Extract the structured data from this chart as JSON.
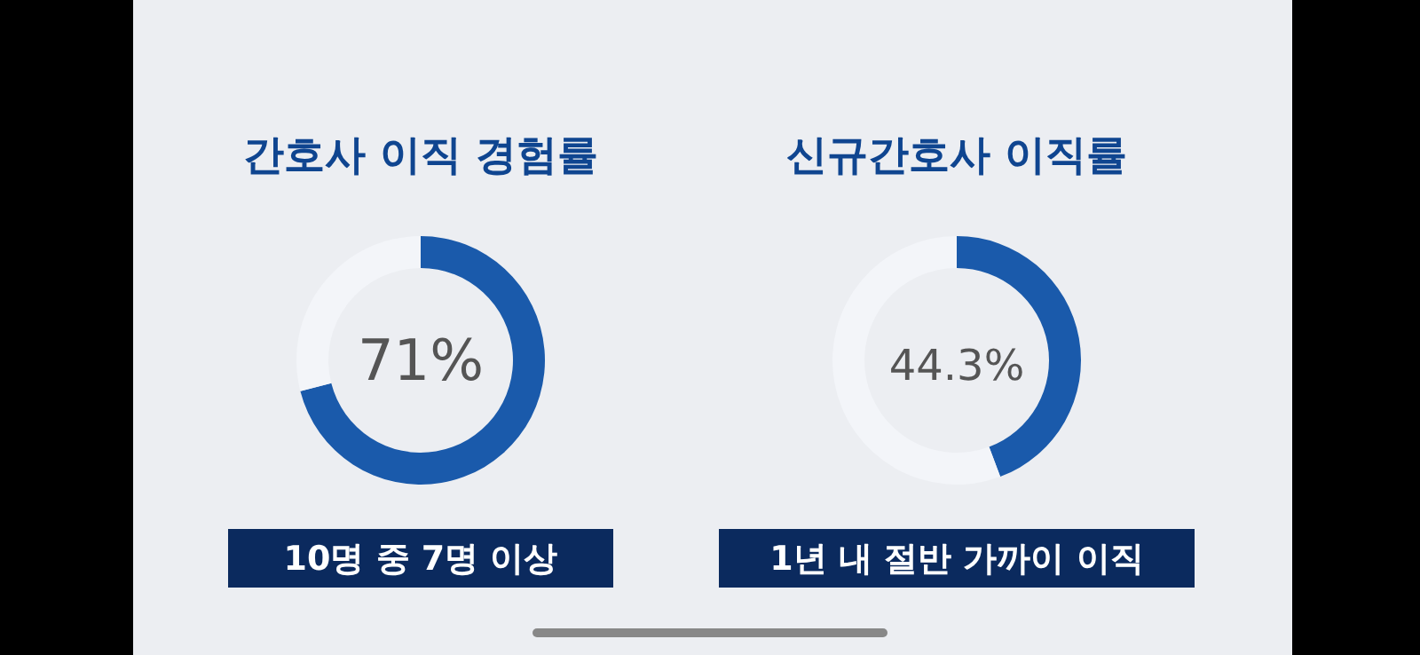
{
  "chart_data": [
    {
      "type": "donut",
      "title": "간호사 이직 경험률",
      "categories": [
        null,
        null
      ],
      "values": [
        71,
        29
      ],
      "colors": [
        "#1a5aab",
        "#f3f5f9"
      ],
      "annotations": [
        "71%",
        "10명 중 7명 이상"
      ]
    },
    {
      "type": "donut",
      "title": "신규간호사 이직률",
      "categories": [
        null,
        null
      ],
      "values": [
        44.3,
        55.7
      ],
      "colors": [
        "#1a5aab",
        "#f3f5f9"
      ],
      "annotations": [
        "44.3%",
        "1년 내 절반 가까이 이직"
      ]
    }
  ]
}
